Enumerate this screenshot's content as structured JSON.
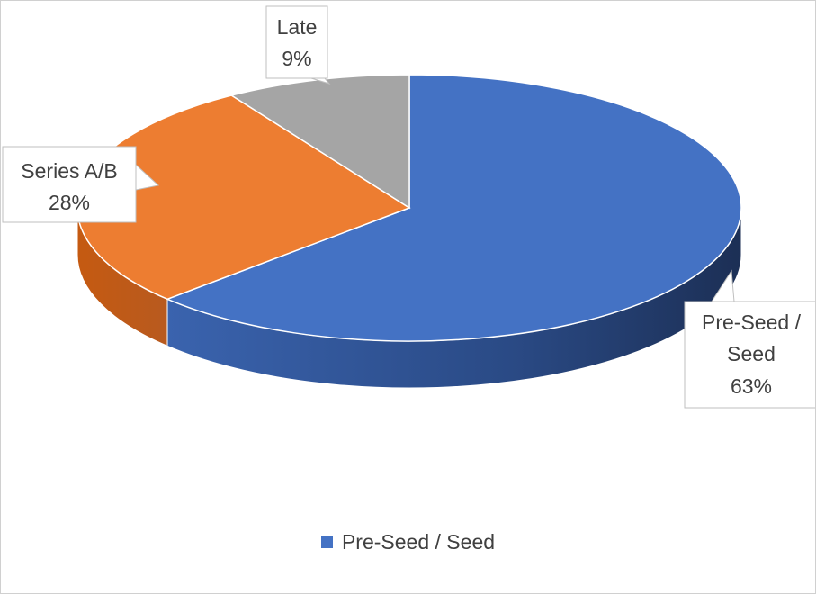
{
  "chart_data": {
    "type": "pie",
    "style": "3d",
    "slices": [
      {
        "name": "Pre-Seed / Seed",
        "label": [
          "Pre-Seed /",
          "Seed"
        ],
        "percent_label": "63%",
        "value": 63,
        "color": "#4472C4",
        "side_color": "#2F528F"
      },
      {
        "name": "Series A/B",
        "label": [
          "Series A/B"
        ],
        "percent_label": "28%",
        "value": 28,
        "color": "#ED7D31",
        "side_color": "#B85A1F"
      },
      {
        "name": "Late",
        "label": [
          "Late"
        ],
        "percent_label": "9%",
        "value": 9,
        "color": "#A5A5A5",
        "side_color": "#7F7F7F"
      }
    ],
    "legend": {
      "position": "bottom",
      "entries": [
        {
          "name": "Pre-Seed / Seed",
          "color": "#4472C4"
        }
      ]
    }
  }
}
